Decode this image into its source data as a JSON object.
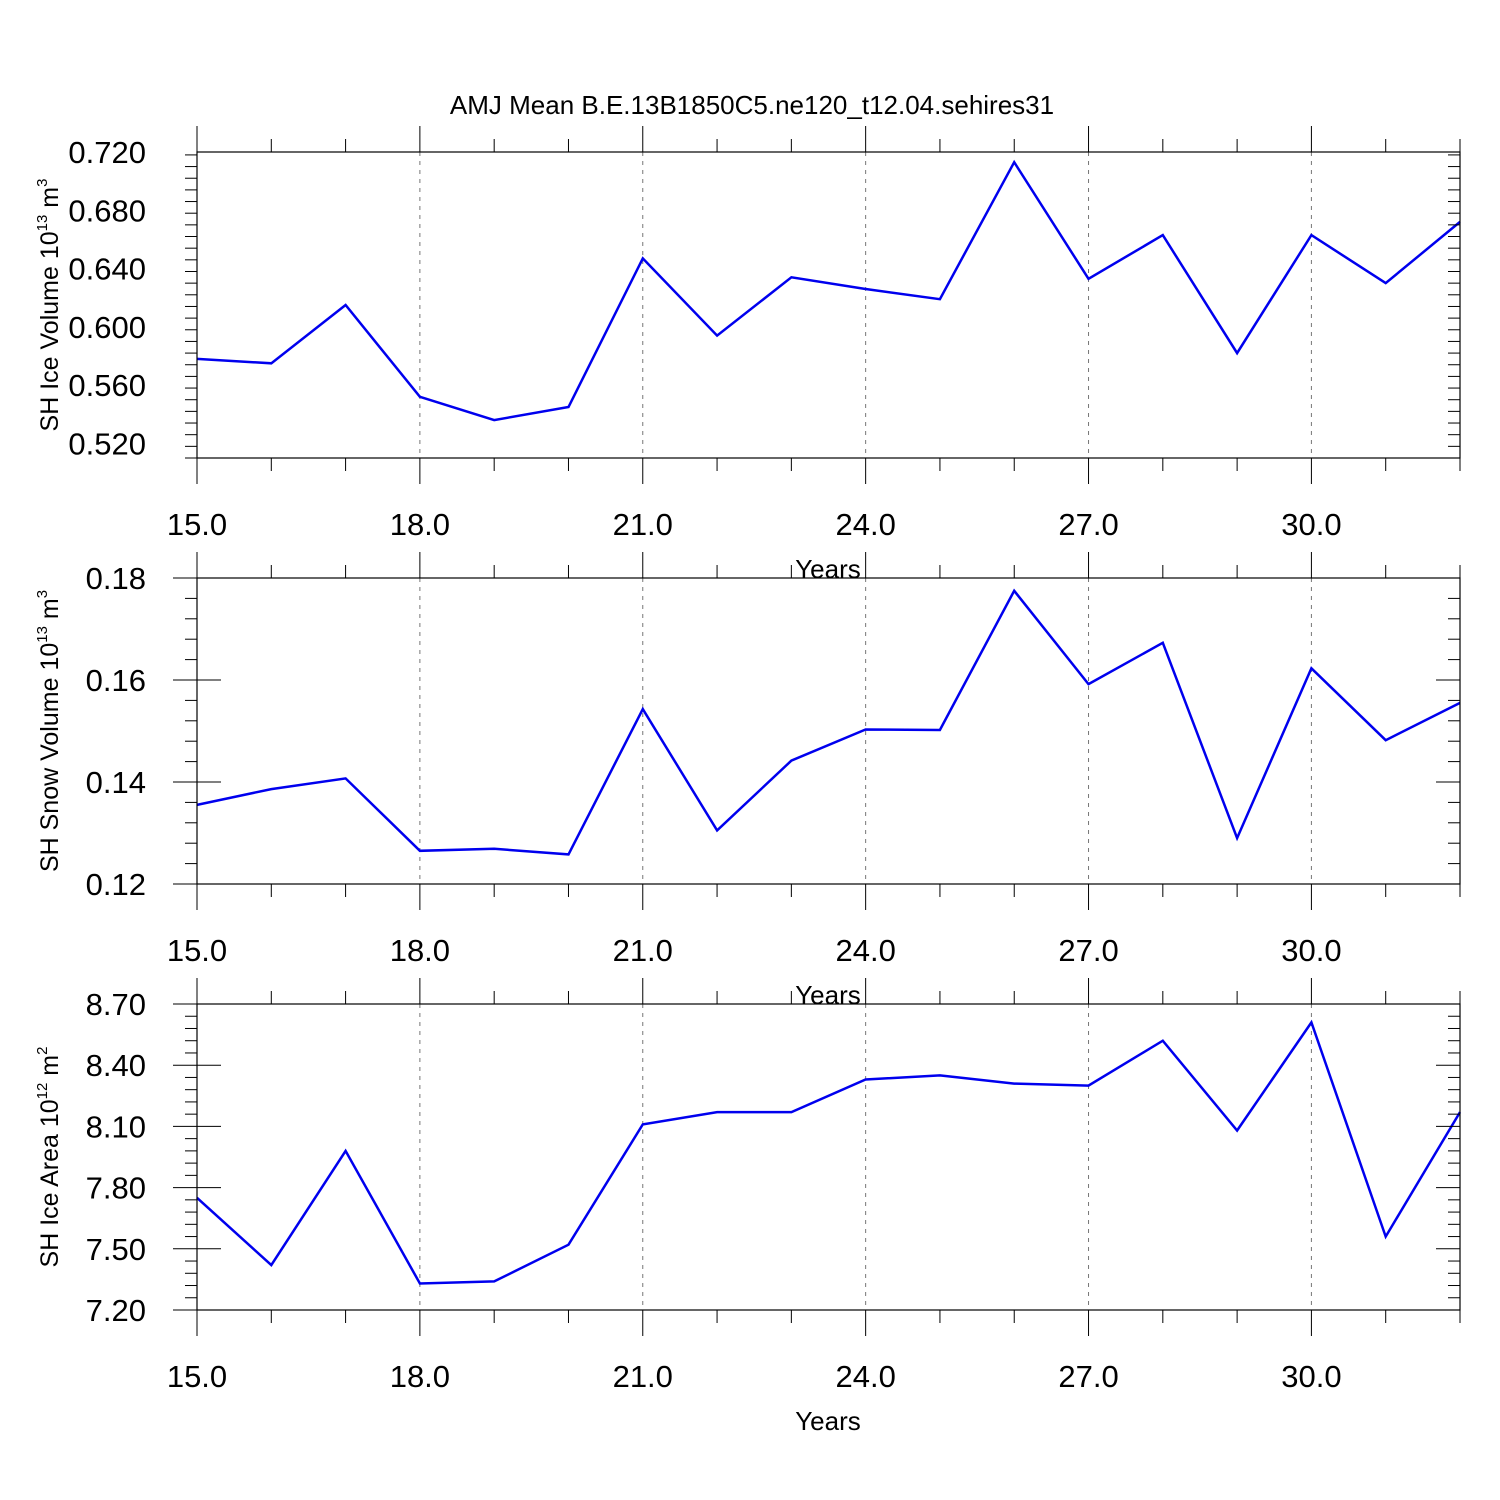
{
  "title": "AMJ Mean B.E.13B1850C5.ne120_t12.04.sehires31",
  "chart_data": [
    {
      "type": "line",
      "ylabel": {
        "main": "SH Ice Volume 10",
        "exp": "13",
        "unit": " m",
        "unit_exp": "3"
      },
      "xlabel": "Years",
      "x": [
        15,
        16,
        17,
        18,
        19,
        20,
        21,
        22,
        23,
        24,
        25,
        26,
        27,
        28,
        29,
        30,
        31,
        32
      ],
      "values": [
        0.578,
        0.575,
        0.615,
        0.552,
        0.536,
        0.545,
        0.647,
        0.594,
        0.634,
        0.626,
        0.619,
        0.713,
        0.633,
        0.663,
        0.582,
        0.663,
        0.63,
        0.672
      ],
      "xlim": [
        15,
        32
      ],
      "ylim": [
        0.51,
        0.72
      ],
      "xticks": [
        15,
        18,
        21,
        24,
        27,
        30
      ],
      "xtick_labels": [
        "15.0",
        "18.0",
        "21.0",
        "24.0",
        "27.0",
        "30.0"
      ],
      "yticks": [
        0.52,
        0.56,
        0.6,
        0.64,
        0.68,
        0.72
      ],
      "ytick_labels": [
        "0.520",
        "0.560",
        "0.600",
        "0.640",
        "0.680",
        "0.720"
      ],
      "line_color": "#0000ee",
      "grid": "x-dashed"
    },
    {
      "type": "line",
      "ylabel": {
        "main": "SH Snow Volume 10",
        "exp": "13",
        "unit": " m",
        "unit_exp": "3"
      },
      "xlabel": "Years",
      "x": [
        15,
        16,
        17,
        18,
        19,
        20,
        21,
        22,
        23,
        24,
        25,
        26,
        27,
        28,
        29,
        30,
        31,
        32
      ],
      "values": [
        0.1355,
        0.1386,
        0.1407,
        0.1265,
        0.1269,
        0.1258,
        0.1543,
        0.1305,
        0.1442,
        0.1503,
        0.1502,
        0.1775,
        0.1592,
        0.1673,
        0.129,
        0.1623,
        0.1482,
        0.1555
      ],
      "xlim": [
        15,
        32
      ],
      "ylim": [
        0.12,
        0.18
      ],
      "xticks": [
        15,
        18,
        21,
        24,
        27,
        30
      ],
      "xtick_labels": [
        "15.0",
        "18.0",
        "21.0",
        "24.0",
        "27.0",
        "30.0"
      ],
      "yticks": [
        0.12,
        0.14,
        0.16,
        0.18
      ],
      "ytick_labels": [
        "0.12",
        "0.14",
        "0.16",
        "0.18"
      ],
      "line_color": "#0000ee",
      "grid": "x-dashed"
    },
    {
      "type": "line",
      "ylabel": {
        "main": "SH Ice Area 10",
        "exp": "12",
        "unit": " m",
        "unit_exp": "2"
      },
      "xlabel": "Years",
      "x": [
        15,
        16,
        17,
        18,
        19,
        20,
        21,
        22,
        23,
        24,
        25,
        26,
        27,
        28,
        29,
        30,
        31,
        32
      ],
      "values": [
        7.75,
        7.42,
        7.98,
        7.33,
        7.34,
        7.52,
        8.11,
        8.17,
        8.17,
        8.33,
        8.35,
        8.31,
        8.3,
        8.52,
        8.08,
        8.61,
        7.56,
        8.17
      ],
      "xlim": [
        15,
        32
      ],
      "ylim": [
        7.2,
        8.7
      ],
      "xticks": [
        15,
        18,
        21,
        24,
        27,
        30
      ],
      "xtick_labels": [
        "15.0",
        "18.0",
        "21.0",
        "24.0",
        "27.0",
        "30.0"
      ],
      "yticks": [
        7.2,
        7.5,
        7.8,
        8.1,
        8.4,
        8.7
      ],
      "ytick_labels": [
        "7.20",
        "7.50",
        "7.80",
        "8.10",
        "8.40",
        "8.70"
      ],
      "line_color": "#0000ee",
      "grid": "x-dashed"
    }
  ]
}
